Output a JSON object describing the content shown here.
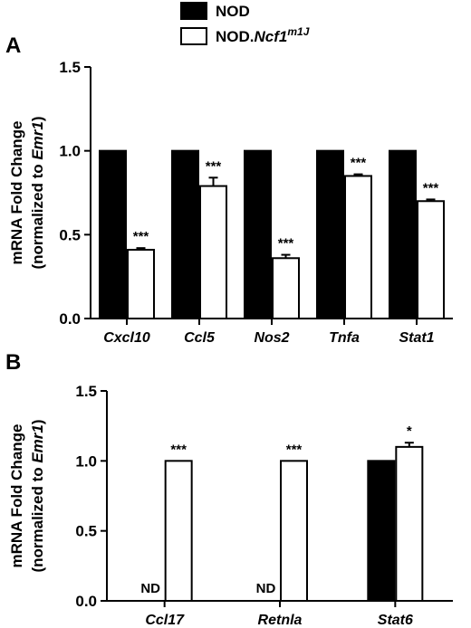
{
  "legend": [
    {
      "label": "NOD",
      "label_plain": "NOD",
      "label_italic": "",
      "label_sup": "",
      "fill": "#000000"
    },
    {
      "label": "NOD.Ncf1m1J",
      "label_plain": "NOD.",
      "label_italic": "Ncf1",
      "label_sup": "m1J",
      "fill": "#ffffff"
    }
  ],
  "chart_data": [
    {
      "panel": "A",
      "type": "bar",
      "ylabel_line1": "mRNA Fold Change",
      "ylabel_line2_prefix": "(normalized to ",
      "ylabel_line2_italic": "Emr1",
      "ylabel_line2_suffix": ")",
      "ylim": [
        0,
        1.5
      ],
      "yticks": [
        "0.0",
        "0.5",
        "1.0",
        "1.5"
      ],
      "categories": [
        "Cxcl10",
        "Ccl5",
        "Nos2",
        "Tnfa",
        "Stat1"
      ],
      "series": [
        {
          "name": "NOD",
          "values": [
            1.0,
            1.0,
            1.0,
            1.0,
            1.0
          ],
          "errors": [
            0,
            0,
            0,
            0,
            0
          ],
          "annotations": [
            "",
            "",
            "",
            "",
            ""
          ]
        },
        {
          "name": "NOD.Ncf1m1J",
          "values": [
            0.41,
            0.79,
            0.36,
            0.85,
            0.7
          ],
          "errors": [
            0.01,
            0.05,
            0.02,
            0.01,
            0.01
          ],
          "annotations": [
            "***",
            "***",
            "***",
            "***",
            "***"
          ]
        }
      ]
    },
    {
      "panel": "B",
      "type": "bar",
      "ylabel_line1": "mRNA Fold Change",
      "ylabel_line2_prefix": "(normalized to ",
      "ylabel_line2_italic": "Emr1",
      "ylabel_line2_suffix": ")",
      "ylim": [
        0,
        1.5
      ],
      "yticks": [
        "0.0",
        "0.5",
        "1.0",
        "1.5"
      ],
      "categories": [
        "Ccl17",
        "Retnla",
        "Stat6"
      ],
      "series": [
        {
          "name": "NOD",
          "values": [
            null,
            null,
            1.0
          ],
          "errors": [
            0,
            0,
            0
          ],
          "annotations": [
            "ND",
            "ND",
            ""
          ]
        },
        {
          "name": "NOD.Ncf1m1J",
          "values": [
            1.0,
            1.0,
            1.1
          ],
          "errors": [
            0,
            0,
            0.03
          ],
          "annotations": [
            "***",
            "***",
            "*"
          ]
        }
      ]
    }
  ]
}
